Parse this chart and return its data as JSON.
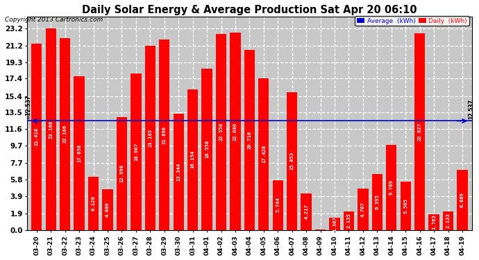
{
  "title": "Daily Solar Energy & Average Production Sat Apr 20 06:10",
  "copyright": "Copyright 2013 Cartronics.com",
  "average_value": 12.537,
  "bar_color": "#FF0000",
  "average_line_color": "#0000CC",
  "background_color": "#FFFFFF",
  "plot_bg_color": "#C8C8C8",
  "grid_color": "#FFFFFF",
  "categories": [
    "03-20",
    "03-21",
    "03-22",
    "03-23",
    "03-24",
    "03-25",
    "03-26",
    "03-27",
    "03-28",
    "03-29",
    "03-30",
    "03-31",
    "04-01",
    "04-02",
    "04-03",
    "04-04",
    "04-05",
    "04-06",
    "04-07",
    "04-08",
    "04-09",
    "04-10",
    "04-11",
    "04-12",
    "04-13",
    "04-14",
    "04-15",
    "04-16",
    "04-17",
    "04-18",
    "04-19"
  ],
  "values": [
    21.418,
    23.166,
    22.106,
    17.658,
    6.128,
    4.68,
    12.998,
    18.007,
    21.185,
    21.89,
    13.344,
    16.154,
    18.558,
    22.556,
    22.686,
    20.716,
    17.428,
    5.744,
    15.853,
    4.217,
    0.059,
    1.367,
    2.135,
    4.767,
    6.395,
    9.789,
    5.565,
    22.627,
    1.763,
    2.133,
    6.889
  ],
  "yticks": [
    0.0,
    1.9,
    3.9,
    5.8,
    7.7,
    9.7,
    11.6,
    13.5,
    15.4,
    17.4,
    19.3,
    21.2,
    23.2
  ],
  "ymax": 24.5,
  "legend_avg_color": "#0000CC",
  "legend_daily_color": "#FF0000"
}
